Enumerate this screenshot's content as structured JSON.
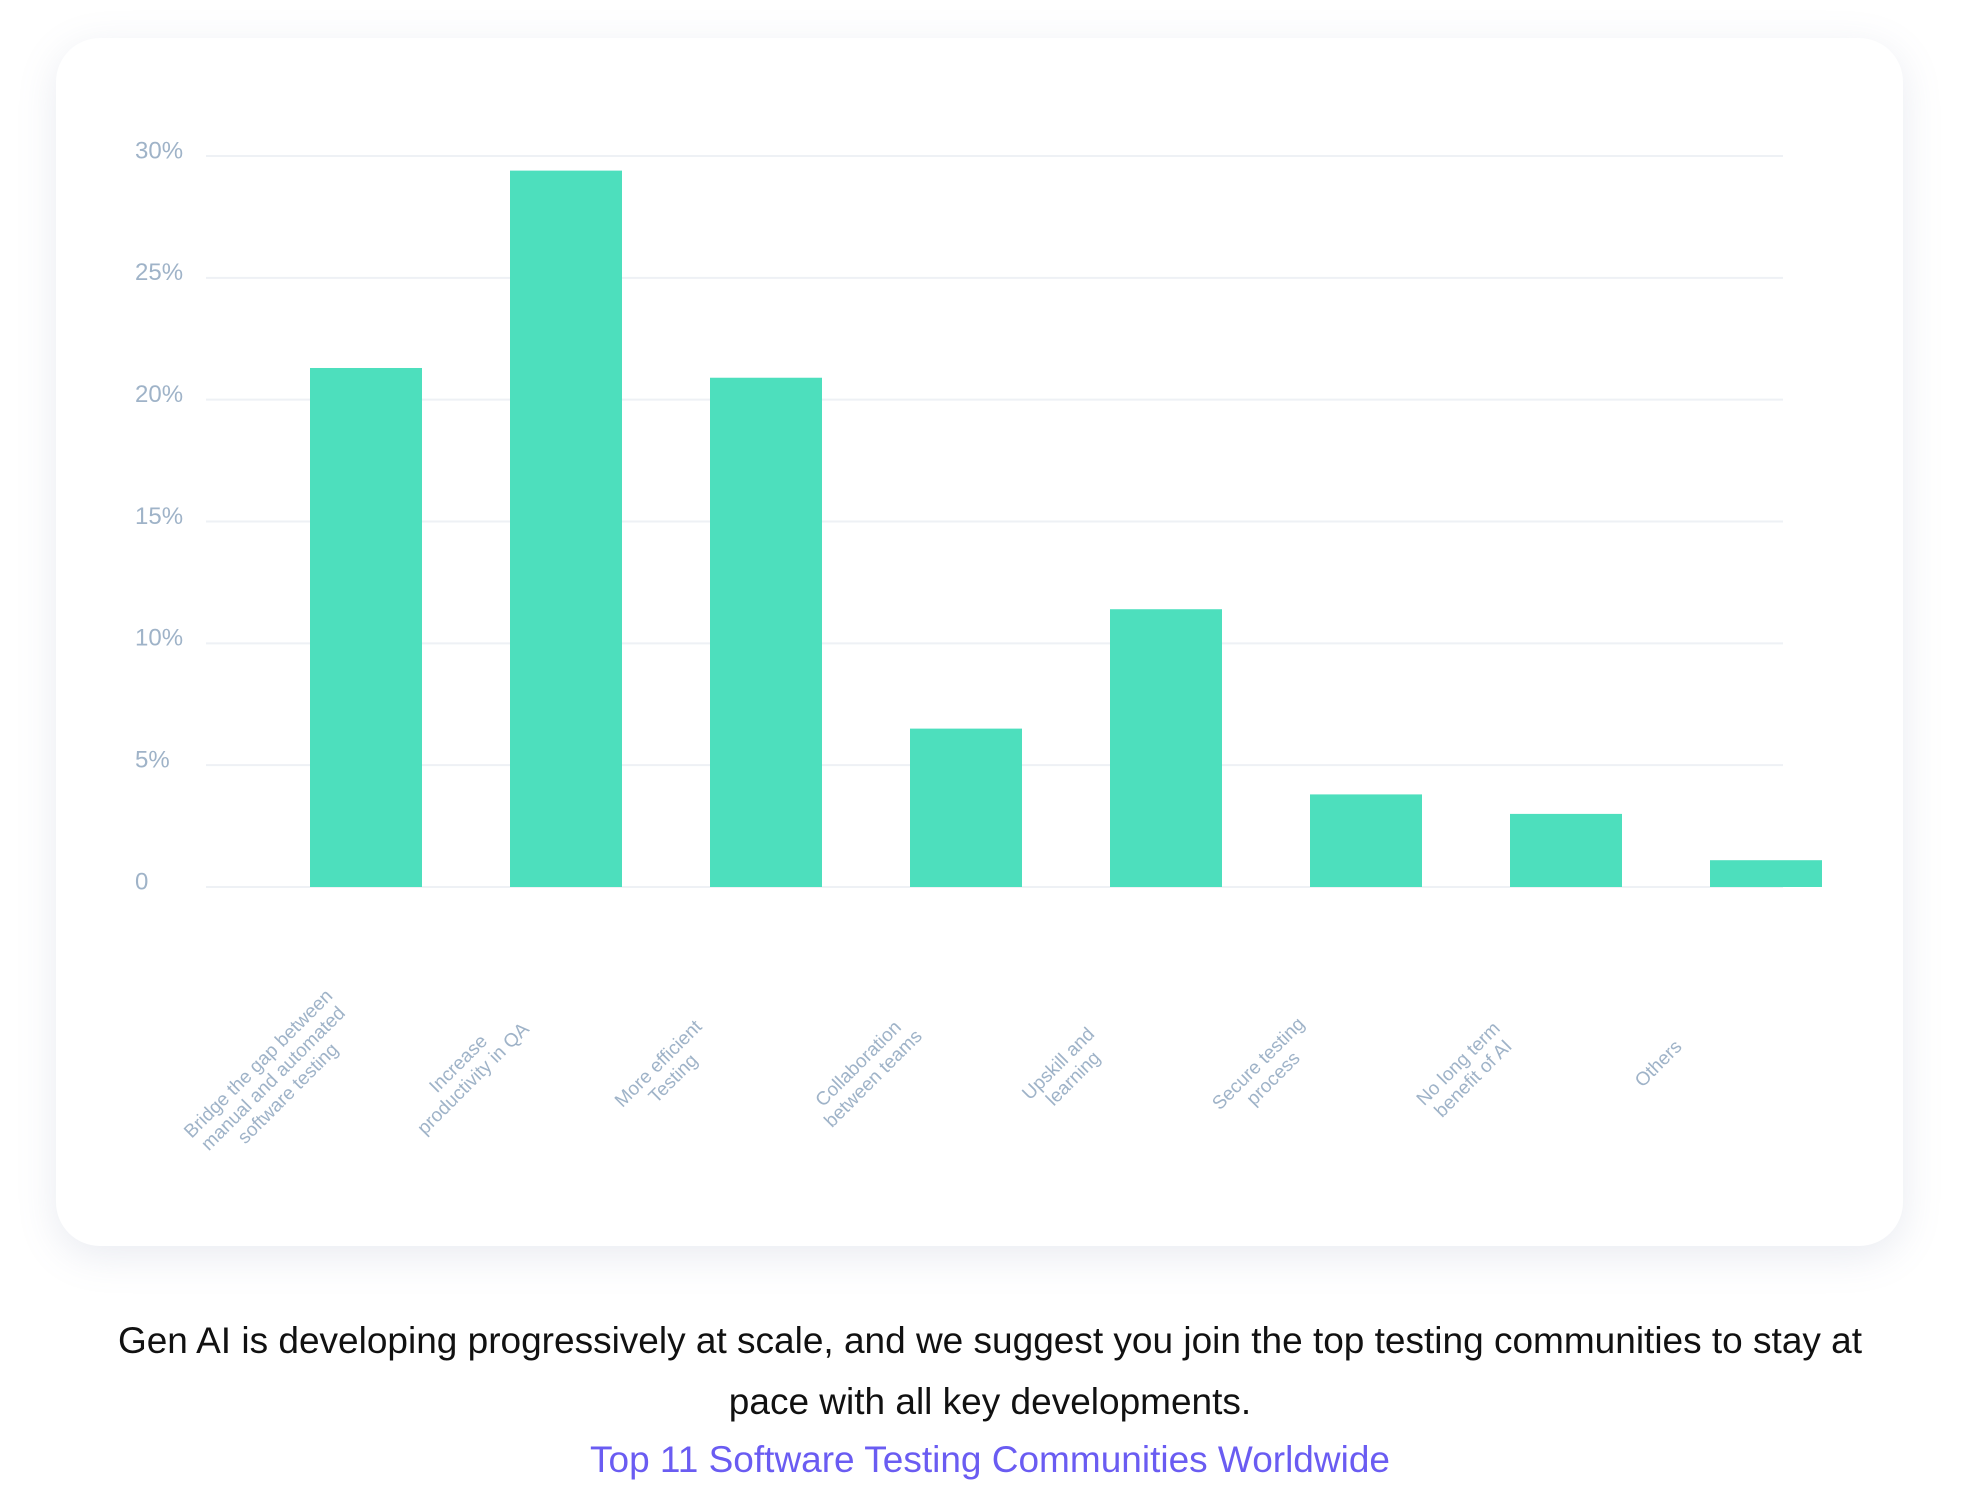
{
  "chart_data": {
    "type": "bar",
    "categories": [
      "Bridge the gap between\nmanual and automated\nsoftware testing",
      "Increase\nproductivity in QA",
      "More efficient\nTesting",
      "Collaboration\nbetween teams",
      "Upskill and\nlearning",
      "Secure testing\nprocess",
      "No long term\nbenefit of AI",
      "Others"
    ],
    "values": [
      21.3,
      29.4,
      20.9,
      6.5,
      11.4,
      3.8,
      3.0,
      1.1
    ],
    "color": "#4ddfbd",
    "ylim": [
      0,
      30
    ],
    "yticks": [
      0,
      {
        "value": 5,
        "label": "5%"
      },
      {
        "value": 10,
        "label": "10%"
      },
      {
        "value": 15,
        "label": "15%"
      },
      {
        "value": 20,
        "label": "20%"
      },
      {
        "value": 25,
        "label": "25%"
      },
      {
        "value": 30,
        "label": "30%"
      }
    ],
    "grid": true
  },
  "caption": {
    "text": "Gen AI is developing progressively at scale, and we suggest you join the top testing communities to stay at pace with all key developments.",
    "link": "Top 11 Software Testing Communities Worldwide"
  }
}
